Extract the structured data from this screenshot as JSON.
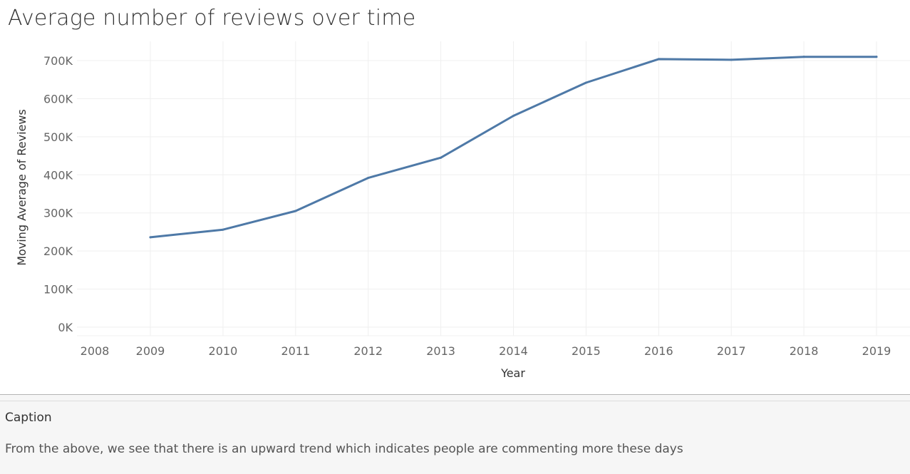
{
  "title": "Average number of reviews over time",
  "caption": {
    "heading": "Caption",
    "text": "From the above, we see that there is an upward trend which indicates people are commenting more these days"
  },
  "colors": {
    "line": "#4e79a7",
    "grid": "#efefef",
    "axis_text": "#666666",
    "axis_title": "#333333"
  },
  "chart_data": {
    "type": "line",
    "title": "Average number of reviews over time",
    "xlabel": "Year",
    "ylabel": "Moving Average of Reviews",
    "x_ticks": [
      "2008",
      "2009",
      "2010",
      "2011",
      "2012",
      "2013",
      "2014",
      "2015",
      "2016",
      "2017",
      "2018",
      "2019"
    ],
    "y_ticks": [
      "0K",
      "100K",
      "200K",
      "300K",
      "400K",
      "500K",
      "600K",
      "700K"
    ],
    "ylim": [
      0,
      700000
    ],
    "grid": true,
    "series": [
      {
        "x": [
          2009,
          2010,
          2011,
          2012,
          2013,
          2014,
          2015,
          2016,
          2017,
          2018,
          2019
        ],
        "values": [
          236000,
          256000,
          305000,
          392000,
          445000,
          555000,
          642000,
          704000,
          702000,
          710000,
          710000
        ]
      }
    ]
  }
}
